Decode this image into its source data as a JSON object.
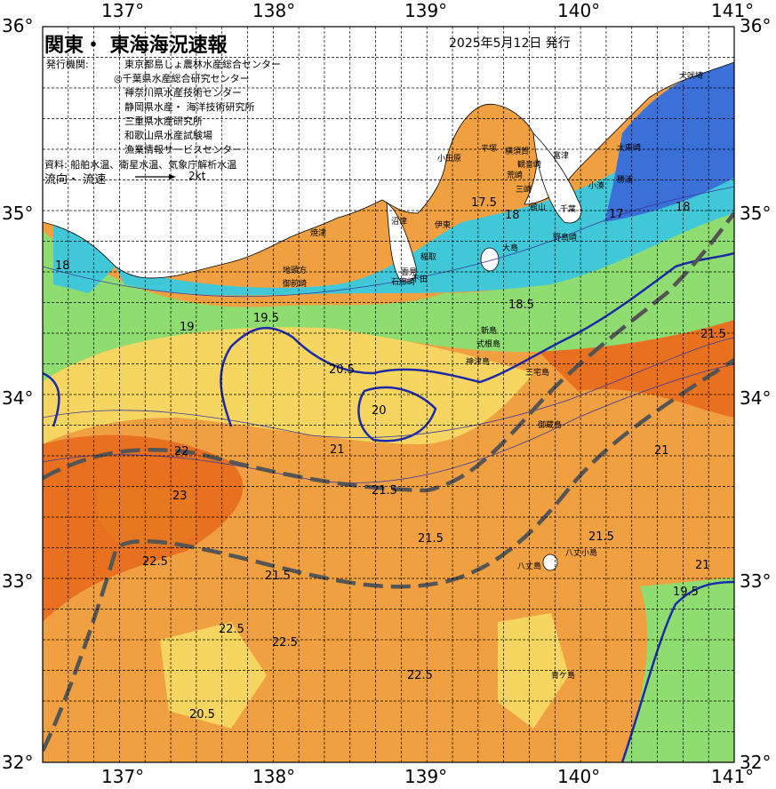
{
  "title": "関東・ 東海海況速報",
  "issue_date": "2025年5月12日 発行",
  "issuer_label": "発行機関:",
  "organizations": [
    "東京都島しょ農林水産総合センター",
    "◎千葉県水産総合研究センター",
    "神奈川県水産技術センター",
    "静岡県水産・ 海洋技術研究所",
    "三重県水産研究所",
    "和歌山県水産試験場",
    "漁業情報サービスセンター"
  ],
  "source": "資料: 船舶水温、衛星水温、気象庁解析水温",
  "flow_legend": {
    "label": "流向・ 流速",
    "unit": "2kt"
  },
  "axes": {
    "longitude_labels": [
      "137°",
      "138°",
      "139°",
      "140°",
      "141°"
    ],
    "latitude_labels": [
      "36°",
      "35°",
      "34°",
      "33°",
      "32°"
    ]
  },
  "colors": {
    "sea_warm": "#f0a040",
    "sea_hot": "#e8701f",
    "sea_mid": "#f6d560",
    "sea_cool": "#8fdc70",
    "sea_cold": "#40c8d8",
    "sea_coldest": "#3a70d8",
    "isotherm_20": "#1a2aa8",
    "kuroshio_axis": "#555555",
    "land": "#ffffff"
  },
  "isotherm_labels": [
    "18",
    "19",
    "19.5",
    "20",
    "20.5",
    "21",
    "21.5",
    "22",
    "22.5",
    "23",
    "17",
    "17.5",
    "18.5"
  ],
  "place_names": [
    "犬吠埼",
    "太東崎",
    "勝浦",
    "小湊",
    "千葉",
    "館山",
    "野島崎",
    "大島",
    "富津",
    "横須賀",
    "観音崎",
    "荒崎",
    "三崎",
    "平塚",
    "小田原",
    "伊東",
    "稲取",
    "下田",
    "雲見",
    "石廊崎",
    "沼津",
    "焼津",
    "御前崎",
    "地頭方",
    "新島",
    "式根島",
    "神津島",
    "三宅島",
    "御蔵島",
    "八丈島",
    "八丈小島",
    "青ケ島"
  ]
}
